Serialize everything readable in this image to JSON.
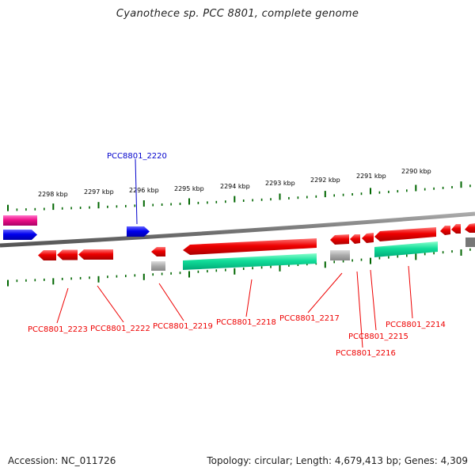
{
  "title": "Cyanothece sp. PCC 8801, complete genome",
  "footer": {
    "accession": "Accession: NC_011726",
    "topology": "Topology: circular; Length: 4,679,413 bp; Genes: 4,309"
  },
  "colors": {
    "forward_gene": "#0000ee",
    "reverse_gene": "#ee0000",
    "rna": "#ee1188",
    "cds_bar": "#11dd99",
    "pseudo": "#aaaaaa",
    "backbone": "#777777",
    "tick": "#006600"
  },
  "kbp_ticks": [
    "2298 kbp",
    "2297 kbp",
    "2296 kbp",
    "2295 kbp",
    "2294 kbp",
    "2293 kbp",
    "2292 kbp",
    "2291 kbp",
    "2290 kbp"
  ],
  "gene_labels": [
    {
      "name": "PCC8801_2220",
      "strand": "forward"
    },
    {
      "name": "PCC8801_2223",
      "strand": "reverse"
    },
    {
      "name": "PCC8801_2222",
      "strand": "reverse"
    },
    {
      "name": "PCC8801_2219",
      "strand": "reverse"
    },
    {
      "name": "PCC8801_2218",
      "strand": "reverse"
    },
    {
      "name": "PCC8801_2217",
      "strand": "reverse"
    },
    {
      "name": "PCC8801_2215",
      "strand": "reverse"
    },
    {
      "name": "PCC8801_2216",
      "strand": "reverse"
    },
    {
      "name": "PCC8801_2214",
      "strand": "reverse"
    }
  ]
}
